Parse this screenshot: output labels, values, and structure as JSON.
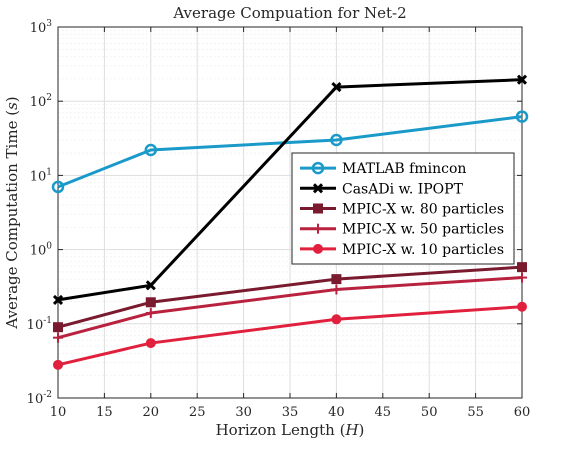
{
  "chart_data": {
    "type": "line",
    "title": "Average Compuation for Net-2",
    "xlabel": "Horizon Length (H)",
    "ylabel": "Average Computation Time (s)",
    "x": [
      10,
      20,
      40,
      60
    ],
    "xlim": [
      10,
      60
    ],
    "xticks": [
      "10",
      "15",
      "20",
      "25",
      "30",
      "35",
      "40",
      "45",
      "50",
      "55",
      "60"
    ],
    "yscale": "log",
    "ylim": [
      0.01,
      1000
    ],
    "yticks": [
      {
        "base": "10",
        "exp": "-2"
      },
      {
        "base": "10",
        "exp": "-1"
      },
      {
        "base": "10",
        "exp": "0"
      },
      {
        "base": "10",
        "exp": "1"
      },
      {
        "base": "10",
        "exp": "2"
      },
      {
        "base": "10",
        "exp": "3"
      }
    ],
    "grid": true,
    "minor_grid": true,
    "legend_position": "center-right",
    "series": [
      {
        "name": "MATLAB fmincon",
        "color": "#1a9ac9",
        "marker": "circle-open",
        "values": [
          7,
          22,
          30,
          62
        ]
      },
      {
        "name": "CasADi w. IPOPT",
        "color": "#000000",
        "marker": "x",
        "values": [
          0.21,
          0.33,
          155,
          195
        ]
      },
      {
        "name": "MPIC-X w. 80 particles",
        "color": "#7a1a2e",
        "marker": "square",
        "values": [
          0.09,
          0.195,
          0.4,
          0.58
        ]
      },
      {
        "name": "MPIC-X w. 50 particles",
        "color": "#b8223f",
        "marker": "plus",
        "values": [
          0.065,
          0.14,
          0.29,
          0.42
        ]
      },
      {
        "name": "MPIC-X w. 10 particles",
        "color": "#e0203c",
        "marker": "circle-filled",
        "values": [
          0.028,
          0.055,
          0.115,
          0.17
        ]
      }
    ]
  }
}
